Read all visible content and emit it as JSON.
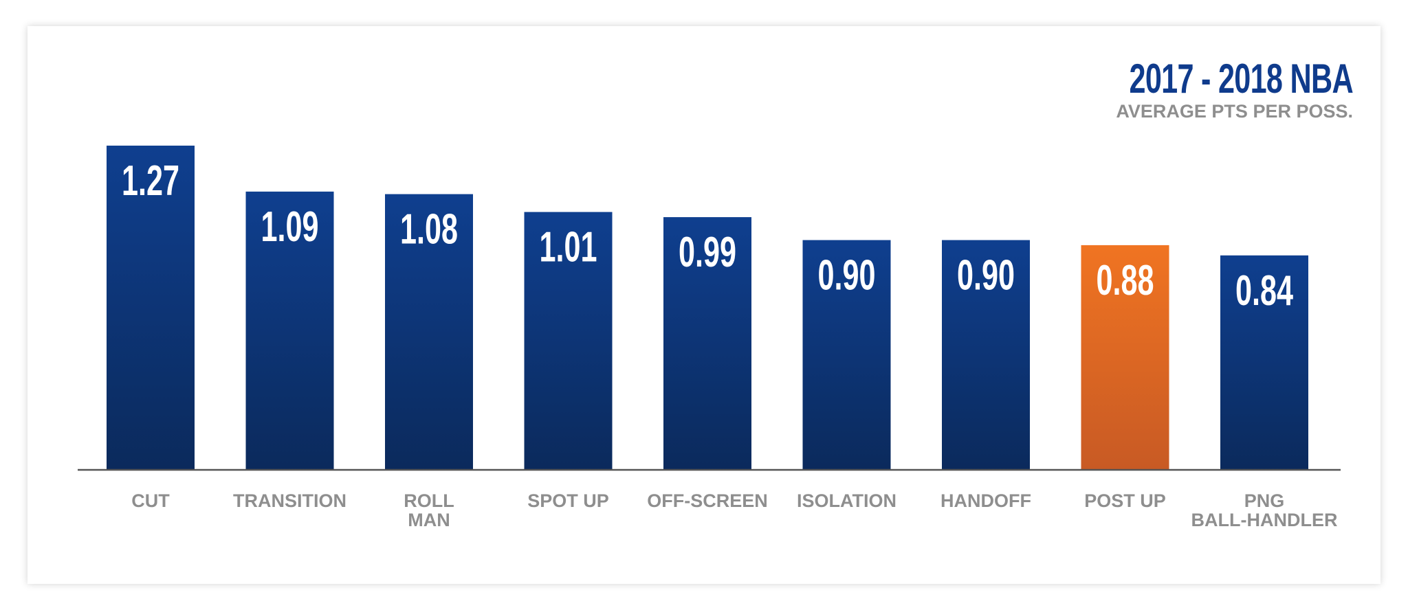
{
  "chart_data": {
    "type": "bar",
    "title": "2017 - 2018 NBA",
    "subtitle": "AVERAGE PTS PER POSS.",
    "categories": [
      [
        "CUT"
      ],
      [
        "TRANSITION"
      ],
      [
        "ROLL",
        "MAN"
      ],
      [
        "SPOT UP"
      ],
      [
        "OFF-SCREEN"
      ],
      [
        "ISOLATION"
      ],
      [
        "HANDOFF"
      ],
      [
        "POST UP"
      ],
      [
        "PNG",
        "BALL-HANDLER"
      ]
    ],
    "values": [
      1.27,
      1.09,
      1.08,
      1.01,
      0.99,
      0.9,
      0.9,
      0.88,
      0.84
    ],
    "value_labels": [
      "1.27",
      "1.09",
      "1.08",
      "1.01",
      "0.99",
      "0.90",
      "0.90",
      "0.88",
      "0.84"
    ],
    "highlight_index": 7,
    "ylim": [
      0,
      1.27
    ],
    "grid": false,
    "colors": {
      "bar_top": "#0f3f8f",
      "bar_bottom": "#0b2a5c",
      "highlight_top": "#f07422",
      "highlight_bottom": "#c85a24",
      "axis": "#555555",
      "label": "#8e8e8e",
      "title": "#0f3b8c"
    }
  }
}
